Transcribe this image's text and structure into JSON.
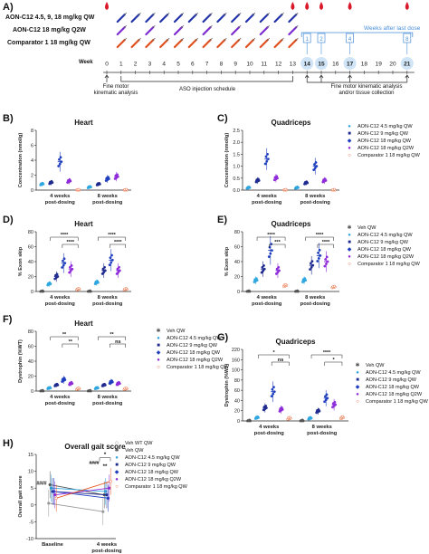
{
  "colors": {
    "aon45": "#2ea7e0",
    "aon9": "#1f2a8f",
    "aon18": "#1f3fbf",
    "aon18q2w": "#8e2bd9",
    "comp": "#e85d2a",
    "veh": "#555555",
    "drop": "#d91a2a",
    "weeks": "#4a90d9"
  },
  "panelA": {
    "letter": "A)",
    "groups": [
      {
        "label": "AON-C12 4.5, 9, 18 mg/kg QW",
        "color": "#2233aa"
      },
      {
        "label": "AON-C12 18 mg/kg Q2W",
        "color": "#7b2bd0"
      },
      {
        "label": "Comparator 1 18 mg/kg QW",
        "color": "#e0501e"
      }
    ],
    "weeks_after_label": "Weeks after last dose",
    "week_label": "Week",
    "weeks": [
      "0",
      "1",
      "2",
      "3",
      "4",
      "5",
      "6",
      "7",
      "8",
      "9",
      "10",
      "11",
      "12",
      "13",
      "14",
      "15",
      "16",
      "17",
      "18",
      "19",
      "20",
      "21"
    ],
    "after_boxes": [
      "1",
      "2",
      "4",
      "8"
    ],
    "fine_motor_left": "Fine motor\nkinematic analysis",
    "aso_schedule": "ASO injection schedule",
    "fine_motor_right": "Fine motor kinematic analysis\nand/or tissue collection"
  },
  "legends": {
    "five": [
      "AON-C12 4.5 mg/kg QW",
      "AON-C12 9 mg/kg QW",
      "AON-C12 18 mg/kg QW",
      "AON-C12 18 mg/kg Q2W",
      "Comparator 1 18 mg/kg QW"
    ],
    "six": [
      "Veh QW",
      "AON-C12 4.5 mg/kg QW",
      "AON-C12 9 mg/kg QW",
      "AON-C12 18 mg/kg QW",
      "AON-C12 18 mg/kg Q2W",
      "Comparator 1 18 mg/kg QW"
    ],
    "seven": [
      "Veh WT QW",
      "Veh QW",
      "AON-C12 4.5 mg/kg QW",
      "AON-C12 9 mg/kg QW",
      "AON-C12 18 mg/kg QW",
      "AON-C12 18 mg/kg Q2W",
      "Comparator 1 18 mg/kg QW"
    ]
  },
  "chart_data": [
    {
      "panel": "B)",
      "type": "scatter",
      "title": "Heart",
      "ylabel": "Concentration (nmol/g)",
      "ylim": [
        0,
        8
      ],
      "yticks": [
        "0",
        "2",
        "4",
        "6",
        "8"
      ],
      "categories": [
        "4 weeks\npost-dosing",
        "8 weeks\npost-dosing"
      ],
      "series": [
        {
          "name": "AON-C12 4.5 mg/kg QW",
          "values": [
            0.8,
            0.4
          ]
        },
        {
          "name": "AON-C12 9 mg/kg QW",
          "values": [
            1.0,
            0.8
          ]
        },
        {
          "name": "AON-C12 18 mg/kg QW",
          "values": [
            3.8,
            1.5
          ]
        },
        {
          "name": "AON-C12 18 mg/kg Q2W",
          "values": [
            1.2,
            1.8
          ]
        },
        {
          "name": "Comparator 1 18 mg/kg QW",
          "values": [
            0.0,
            0.0
          ]
        }
      ]
    },
    {
      "panel": "C)",
      "type": "scatter",
      "title": "Quadriceps",
      "ylabel": "Concentration (nmol/g)",
      "ylim": [
        0,
        2.5
      ],
      "yticks": [
        "0.0",
        "0.5",
        "1.0",
        "1.5",
        "2.0",
        "2.5"
      ],
      "categories": [
        "4 weeks\npost-dosing",
        "8 weeks\npost-dosing"
      ],
      "series": [
        {
          "name": "AON-C12 4.5 mg/kg QW",
          "values": [
            0.1,
            0.1
          ]
        },
        {
          "name": "AON-C12 9 mg/kg QW",
          "values": [
            0.4,
            0.3
          ]
        },
        {
          "name": "AON-C12 18 mg/kg QW",
          "values": [
            1.3,
            1.0
          ]
        },
        {
          "name": "AON-C12 18 mg/kg Q2W",
          "values": [
            0.5,
            0.4
          ]
        },
        {
          "name": "Comparator 1 18 mg/kg QW",
          "values": [
            0.0,
            0.0
          ]
        }
      ]
    },
    {
      "panel": "D)",
      "type": "scatter",
      "title": "Heart",
      "ylabel": "% Exon skip",
      "ylim": [
        0,
        80
      ],
      "yticks": [
        "0",
        "20",
        "40",
        "60",
        "80"
      ],
      "categories": [
        "4 weeks\npost-dosing",
        "8 weeks\npost-dosing"
      ],
      "sig": [
        "****",
        "****",
        "****",
        "****"
      ],
      "series": [
        {
          "name": "Veh QW",
          "values": [
            0,
            0
          ]
        },
        {
          "name": "AON-C12 4.5 mg/kg QW",
          "values": [
            10,
            12
          ]
        },
        {
          "name": "AON-C12 9 mg/kg QW",
          "values": [
            20,
            28
          ]
        },
        {
          "name": "AON-C12 18 mg/kg QW",
          "values": [
            38,
            42
          ]
        },
        {
          "name": "AON-C12 18 mg/kg Q2W",
          "values": [
            30,
            28
          ]
        },
        {
          "name": "Comparator 1 18 mg/kg QW",
          "values": [
            3,
            3
          ]
        }
      ]
    },
    {
      "panel": "E)",
      "type": "scatter",
      "title": "Quadriceps",
      "ylabel": "% Exon skip",
      "ylim": [
        0,
        80
      ],
      "yticks": [
        "0",
        "20",
        "40",
        "60",
        "80"
      ],
      "categories": [
        "4 weeks\npost-dosing",
        "8 weeks\npost-dosing"
      ],
      "sig": [
        "****",
        "***",
        "****",
        "****"
      ],
      "series": [
        {
          "name": "Veh QW",
          "values": [
            0,
            0
          ]
        },
        {
          "name": "AON-C12 4.5 mg/kg QW",
          "values": [
            15,
            15
          ]
        },
        {
          "name": "AON-C12 9 mg/kg QW",
          "values": [
            30,
            35
          ]
        },
        {
          "name": "AON-C12 18 mg/kg QW",
          "values": [
            55,
            48
          ]
        },
        {
          "name": "AON-C12 18 mg/kg Q2W",
          "values": [
            28,
            40
          ]
        },
        {
          "name": "Comparator 1 18 mg/kg QW",
          "values": [
            8,
            6
          ]
        }
      ]
    },
    {
      "panel": "F)",
      "type": "scatter",
      "title": "Heart",
      "ylabel": "Dystrophin (%WT)",
      "ylim": [
        0,
        80
      ],
      "yticks": [
        "0",
        "20",
        "40",
        "60",
        "80"
      ],
      "categories": [
        "4 weeks\npost-dosing",
        "8 weeks\npost-dosing"
      ],
      "sig": [
        "**",
        "**",
        "**",
        "ns"
      ],
      "series": [
        {
          "name": "Veh QW",
          "values": [
            0,
            0
          ]
        },
        {
          "name": "AON-C12 4.5 mg/kg QW",
          "values": [
            4,
            4
          ]
        },
        {
          "name": "AON-C12 9 mg/kg QW",
          "values": [
            8,
            8
          ]
        },
        {
          "name": "AON-C12 18 mg/kg QW",
          "values": [
            15,
            12
          ]
        },
        {
          "name": "AON-C12 18 mg/kg Q2W",
          "values": [
            10,
            10
          ]
        },
        {
          "name": "Comparator 1 18 mg/kg QW",
          "values": [
            3,
            3
          ]
        }
      ]
    },
    {
      "panel": "G)",
      "type": "scatter",
      "title": "Quadriceps",
      "ylabel": "Dystrophin (%WT)",
      "ylim": [
        0,
        220
      ],
      "yticks": [
        "0",
        "20",
        "40",
        "60",
        "80",
        "100",
        "160",
        "220"
      ],
      "categories": [
        "4 weeks\npost-dosing",
        "8 weeks\npost-dosing"
      ],
      "sig": [
        "*",
        "ns",
        "****",
        "*"
      ],
      "series": [
        {
          "name": "Veh QW",
          "values": [
            0,
            0
          ]
        },
        {
          "name": "AON-C12 4.5 mg/kg QW",
          "values": [
            10,
            8
          ]
        },
        {
          "name": "AON-C12 9 mg/kg QW",
          "values": [
            40,
            30
          ]
        },
        {
          "name": "AON-C12 18 mg/kg QW",
          "values": [
            90,
            70
          ]
        },
        {
          "name": "AON-C12 18 mg/kg Q2W",
          "values": [
            35,
            50
          ]
        },
        {
          "name": "Comparator 1 18 mg/kg QW",
          "values": [
            8,
            10
          ]
        }
      ]
    },
    {
      "panel": "H)",
      "type": "line",
      "title": "Overall gait score",
      "ylabel": "Overall gait score",
      "ylim": [
        -10,
        15
      ],
      "yticks": [
        "-10",
        "-5",
        "0",
        "5",
        "10",
        "15"
      ],
      "categories": [
        "Baseline",
        "4 weeks\npost-dosing"
      ],
      "sig": [
        "####",
        "####",
        "**",
        "*"
      ],
      "series": [
        {
          "name": "Veh WT QW",
          "values": [
            0.5,
            -2
          ]
        },
        {
          "name": "Veh QW",
          "values": [
            6,
            3
          ]
        },
        {
          "name": "AON-C12 4.5 mg/kg QW",
          "values": [
            5,
            4
          ]
        },
        {
          "name": "AON-C12 9 mg/kg QW",
          "values": [
            4,
            3
          ]
        },
        {
          "name": "AON-C12 18 mg/kg QW",
          "values": [
            4,
            2
          ]
        },
        {
          "name": "AON-C12 18 mg/kg Q2W",
          "values": [
            3,
            5
          ]
        },
        {
          "name": "Comparator 1 18 mg/kg QW",
          "values": [
            2,
            7
          ]
        }
      ]
    }
  ]
}
